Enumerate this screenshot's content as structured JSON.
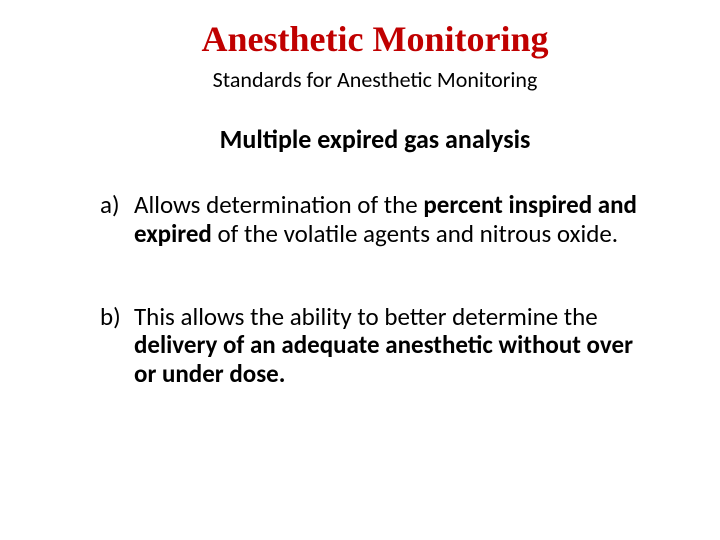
{
  "title": {
    "text": "Anesthetic Monitoring",
    "color": "#c00000",
    "fontsize": 36
  },
  "subtitle": {
    "text": "Standards for Anesthetic Monitoring",
    "color": "#000000",
    "fontsize": 22
  },
  "section": {
    "text": "Multiple expired gas analysis",
    "color": "#000000",
    "fontsize": 26
  },
  "body_fontsize": 25,
  "items": [
    {
      "marker": "a)",
      "runs": [
        {
          "text": "Allows determination of the ",
          "bold": false
        },
        {
          "text": "percent inspired and expired ",
          "bold": true
        },
        {
          "text": "of the volatile agents and nitrous oxide.",
          "bold": false
        }
      ]
    },
    {
      "marker": "b)",
      "runs": [
        {
          "text": "This allows the ability to better determine the ",
          "bold": false
        },
        {
          "text": "delivery of an adequate anesthetic without over or under dose.",
          "bold": true
        }
      ]
    }
  ]
}
